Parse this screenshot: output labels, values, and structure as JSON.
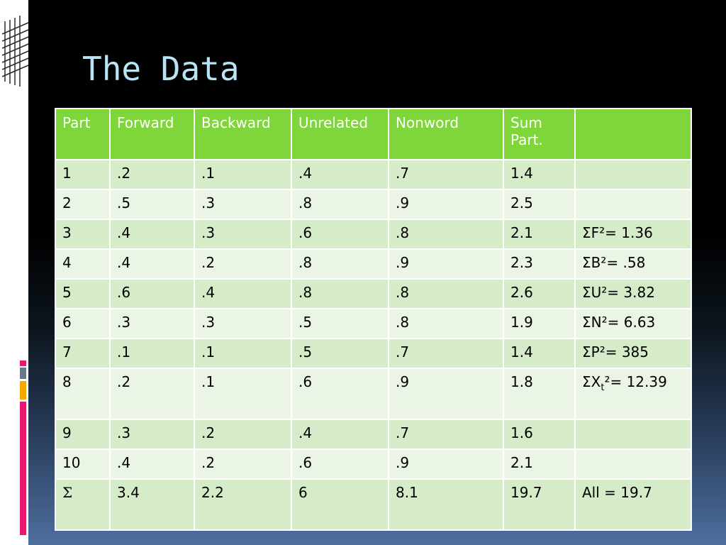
{
  "slide": {
    "title": "The Data"
  },
  "table": {
    "headers": [
      "Part",
      "Forward",
      "Backward",
      "Unrelated",
      "Nonword",
      "Sum\nPart.",
      ""
    ],
    "rows": [
      [
        "1",
        ".2",
        ".1",
        ".4",
        ".7",
        "1.4",
        ""
      ],
      [
        "2",
        ".5",
        ".3",
        ".8",
        ".9",
        "2.5",
        ""
      ],
      [
        "3",
        ".4",
        ".3",
        ".6",
        ".8",
        "2.1",
        "ΣF²= 1.36"
      ],
      [
        "4",
        ".4",
        ".2",
        ".8",
        ".9",
        "2.3",
        "ΣB²= .58"
      ],
      [
        "5",
        ".6",
        ".4",
        ".8",
        ".8",
        "2.6",
        "ΣU²= 3.82"
      ],
      [
        "6",
        ".3",
        ".3",
        ".5",
        ".8",
        "1.9",
        "ΣN²= 6.63"
      ],
      [
        "7",
        ".1",
        ".1",
        ".5",
        ".7",
        "1.4",
        "ΣP²= 385"
      ],
      [
        "8",
        ".2",
        ".1",
        ".6",
        ".9",
        "1.8",
        ""
      ],
      [
        "9",
        ".3",
        ".2",
        ".4",
        ".7",
        "1.6",
        ""
      ],
      [
        "10",
        ".4",
        ".2",
        ".6",
        ".9",
        "2.1",
        ""
      ],
      [
        "Σ",
        "3.4",
        "2.2",
        "6",
        "8.1",
        "19.7",
        "All = 19.7"
      ]
    ],
    "x_total_cell": {
      "prefix": "ΣX",
      "subscript": "t",
      "suffix": "²= 12.39"
    }
  },
  "colors": {
    "header_bg": "#7fd63b",
    "row_dark": "#d6ecc9",
    "row_light": "#ebf5e6",
    "title": "#b8e4f6",
    "accent_pink": "#e8186e",
    "accent_orange": "#f5a800",
    "accent_gray": "#6b7788"
  }
}
